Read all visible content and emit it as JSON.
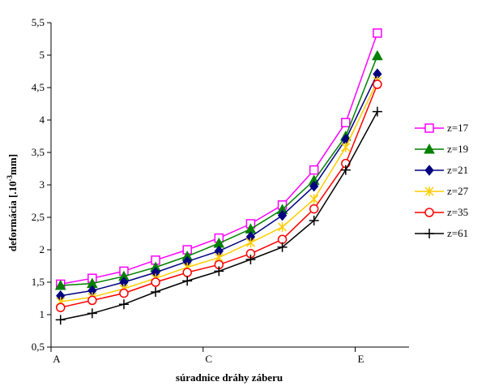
{
  "chart_data": {
    "type": "line",
    "title": "",
    "xlabel": "súradnice dráhy záberu",
    "ylabel_main": "deformácia [.10",
    "ylabel_sup": "-3",
    "ylabel_end": "mm]",
    "ylim": [
      0.5,
      5.5
    ],
    "yticks": [
      "0,5",
      "1",
      "1,5",
      "2",
      "2,5",
      "3",
      "3,5",
      "4",
      "4,5",
      "5",
      "5,5"
    ],
    "x": [
      1,
      2,
      3,
      4,
      5,
      6,
      7,
      8,
      9,
      10,
      11
    ],
    "xlim": [
      0.7,
      12.0
    ],
    "xtick_positions": [
      0.7,
      5.5,
      10.3
    ],
    "xticks": [
      "A",
      "C",
      "E"
    ],
    "grid": false,
    "legend_position": "right",
    "series": [
      {
        "name": "z=17",
        "color": "#ff00ff",
        "marker": "square",
        "values": [
          1.47,
          1.56,
          1.67,
          1.84,
          2.0,
          2.18,
          2.4,
          2.69,
          3.23,
          3.96,
          5.34
        ]
      },
      {
        "name": "z=19",
        "color": "#008000",
        "marker": "triangle",
        "values": [
          1.45,
          1.48,
          1.59,
          1.73,
          1.9,
          2.1,
          2.32,
          2.62,
          3.07,
          3.75,
          4.99
        ]
      },
      {
        "name": "z=21",
        "color": "#000080",
        "marker": "diamond",
        "values": [
          1.29,
          1.37,
          1.5,
          1.65,
          1.82,
          1.98,
          2.2,
          2.53,
          2.98,
          3.7,
          4.71
        ]
      },
      {
        "name": "z=27",
        "color": "#ffcc00",
        "marker": "asterisk",
        "values": [
          1.2,
          1.27,
          1.4,
          1.56,
          1.73,
          1.88,
          2.11,
          2.35,
          2.78,
          3.58,
          4.6
        ]
      },
      {
        "name": "z=35",
        "color": "#ff0000",
        "marker": "circle",
        "values": [
          1.11,
          1.22,
          1.33,
          1.5,
          1.65,
          1.77,
          1.94,
          2.16,
          2.63,
          3.33,
          4.55
        ]
      },
      {
        "name": "z=61",
        "color": "#000000",
        "marker": "plus",
        "values": [
          0.92,
          1.02,
          1.16,
          1.35,
          1.52,
          1.67,
          1.85,
          2.04,
          2.45,
          3.23,
          4.13
        ]
      }
    ]
  }
}
